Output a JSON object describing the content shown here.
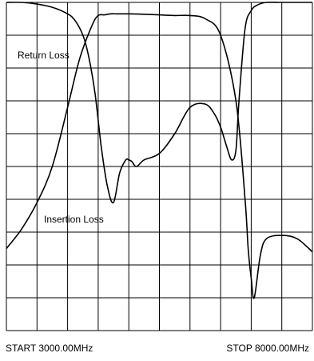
{
  "chart_data": {
    "type": "line",
    "x_unit": "MHz",
    "xlim": [
      3000,
      8000
    ],
    "ylim": [
      0,
      10
    ],
    "grid": true,
    "x_divisions": 10,
    "y_divisions": 10,
    "footer": {
      "start": "START 3000.00MHz",
      "stop": "STOP 8000.00MHz"
    },
    "series": [
      {
        "name": "Return Loss",
        "x": [
          3000,
          3250,
          3500,
          3750,
          3950,
          4100,
          4250,
          4350,
          4450,
          4550,
          4650,
          4750,
          4850,
          4950,
          5000,
          5050,
          5125,
          5250,
          5500,
          5750,
          6000,
          6250,
          6400,
          6500,
          6600,
          6680,
          6750,
          6800,
          6900,
          7000,
          7100,
          7250,
          7500,
          7750,
          8000
        ],
        "y": [
          10.0,
          10.0,
          9.95,
          9.85,
          9.7,
          9.5,
          9.0,
          8.3,
          7.2,
          5.6,
          4.4,
          3.9,
          4.8,
          5.2,
          5.2,
          5.15,
          5.0,
          5.2,
          5.4,
          6.0,
          6.8,
          6.9,
          6.6,
          6.2,
          5.6,
          5.2,
          5.5,
          7.0,
          9.2,
          9.75,
          9.92,
          10.0,
          10.0,
          10.0,
          10.0
        ]
      },
      {
        "name": "Insertion Loss",
        "x": [
          3000,
          3250,
          3500,
          3750,
          4000,
          4200,
          4400,
          4500,
          4600,
          4700,
          4800,
          4900,
          5000,
          5250,
          5500,
          5750,
          6000,
          6250,
          6500,
          6750,
          6900,
          6950,
          7000,
          7050,
          7150,
          7250,
          7500,
          7750,
          8000
        ],
        "y": [
          2.5,
          3.1,
          3.9,
          5.0,
          6.8,
          8.3,
          9.3,
          9.6,
          9.62,
          9.65,
          9.65,
          9.65,
          9.65,
          9.64,
          9.62,
          9.6,
          9.6,
          9.5,
          9.0,
          7.0,
          4.0,
          2.5,
          1.6,
          1.0,
          2.3,
          2.8,
          2.9,
          2.8,
          2.4
        ]
      }
    ]
  }
}
